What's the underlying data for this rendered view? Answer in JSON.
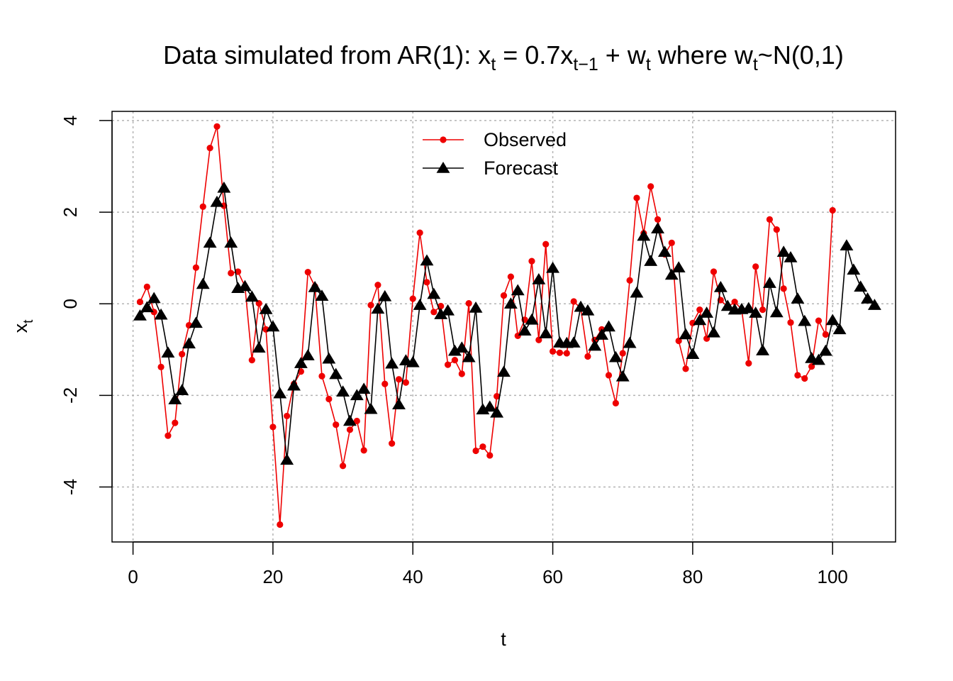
{
  "chart_data": {
    "type": "line",
    "title_segments": [
      {
        "text": "Data simulated from AR(1): x",
        "sub": false
      },
      {
        "text": "t",
        "sub": true
      },
      {
        "text": " = 0.7x",
        "sub": false
      },
      {
        "text": "t−1",
        "sub": true
      },
      {
        "text": " + w",
        "sub": false
      },
      {
        "text": "t",
        "sub": true
      },
      {
        "text": " where w",
        "sub": false
      },
      {
        "text": "t",
        "sub": true
      },
      {
        "text": "~N(0,1)",
        "sub": false
      }
    ],
    "xlabel": "t",
    "ylabel_main": "x",
    "ylabel_sub": "t",
    "xlim": [
      -3,
      109
    ],
    "ylim": [
      -5.2,
      4.2
    ],
    "x_ticks": [
      0,
      20,
      40,
      60,
      80,
      100
    ],
    "x_tick_labels": [
      "0",
      "20",
      "40",
      "60",
      "80",
      "100"
    ],
    "y_ticks": [
      -4,
      -2,
      0,
      2,
      4
    ],
    "y_tick_labels": [
      "-4",
      "-2",
      "0",
      "2",
      "4"
    ],
    "grid": true,
    "legend_position": "top-center",
    "series": [
      {
        "name": "Observed",
        "color": "#ee0000",
        "marker": "circle",
        "x_start": 1,
        "values": [
          0.04,
          0.37,
          -0.18,
          -1.38,
          -2.88,
          -2.6,
          -1.1,
          -0.47,
          0.79,
          2.12,
          3.4,
          3.87,
          2.14,
          0.67,
          0.7,
          0.38,
          -1.23,
          0.01,
          -0.56,
          -2.69,
          -4.82,
          -2.45,
          -1.75,
          -1.48,
          0.69,
          0.38,
          -1.58,
          -2.08,
          -2.64,
          -3.54,
          -2.75,
          -2.56,
          -3.2,
          -0.03,
          0.41,
          -1.75,
          -3.05,
          -1.65,
          -1.72,
          0.11,
          1.55,
          0.47,
          -0.18,
          -0.05,
          -1.33,
          -1.23,
          -1.53,
          0.01,
          -3.21,
          -3.12,
          -3.31,
          -2.02,
          0.18,
          0.59,
          -0.7,
          -0.35,
          0.93,
          -0.79,
          1.3,
          -1.04,
          -1.07,
          -1.08,
          0.05,
          -0.1,
          -1.15,
          -0.79,
          -0.56,
          -1.56,
          -2.17,
          -1.08,
          0.51,
          2.31,
          1.54,
          2.56,
          1.84,
          1.08,
          1.33,
          -0.81,
          -1.42,
          -0.42,
          -0.13,
          -0.76,
          0.7,
          0.08,
          -0.07,
          0.04,
          -0.12,
          -1.3,
          0.81,
          -0.13,
          1.84,
          1.62,
          0.33,
          -0.41,
          -1.56,
          -1.63,
          -1.37,
          -0.37,
          -0.67,
          2.04
        ]
      },
      {
        "name": "Forecast",
        "color": "#000000",
        "marker": "triangle",
        "x_start": 1,
        "values": [
          -0.26,
          -0.08,
          0.12,
          -0.24,
          -1.07,
          -2.09,
          -1.89,
          -0.87,
          -0.42,
          0.43,
          1.33,
          2.22,
          2.53,
          1.33,
          0.34,
          0.38,
          0.15,
          -0.96,
          -0.12,
          -0.5,
          -1.96,
          -3.41,
          -1.79,
          -1.3,
          -1.13,
          0.36,
          0.17,
          -1.2,
          -1.54,
          -1.92,
          -2.56,
          -2.0,
          -1.86,
          -2.3,
          -0.11,
          0.16,
          -1.31,
          -2.2,
          -1.24,
          -1.28,
          -0.03,
          0.94,
          0.21,
          -0.23,
          -0.15,
          -1.03,
          -0.96,
          -1.17,
          -0.09,
          -2.31,
          -2.25,
          -2.38,
          -1.49,
          0.0,
          0.29,
          -0.59,
          -0.35,
          0.53,
          -0.65,
          0.78,
          -0.85,
          -0.86,
          -0.85,
          -0.07,
          -0.15,
          -0.92,
          -0.68,
          -0.5,
          -1.17,
          -1.59,
          -0.86,
          0.24,
          1.48,
          0.93,
          1.64,
          1.13,
          0.63,
          0.79,
          -0.67,
          -1.1,
          -0.36,
          -0.2,
          -0.63,
          0.36,
          -0.05,
          -0.13,
          -0.12,
          -0.1,
          -0.2,
          -1.02,
          0.45,
          -0.19,
          1.13,
          1.01,
          0.11,
          -0.38,
          -1.19,
          -1.23,
          -1.03,
          -0.36,
          -0.56,
          1.27,
          0.74,
          0.37,
          0.11,
          -0.03
        ]
      }
    ]
  }
}
